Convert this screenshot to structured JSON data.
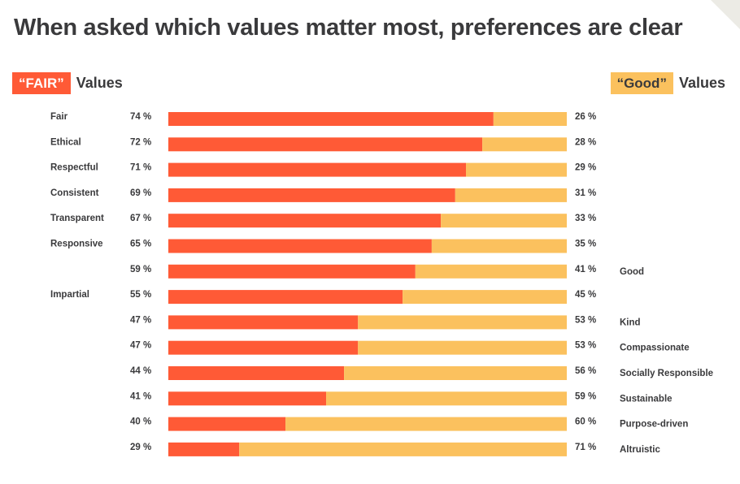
{
  "title": "When asked which values matter most, preferences are clear",
  "legend": {
    "left_chip": "“FAIR”",
    "left_text": "Values",
    "right_chip": "“Good”",
    "right_text": "Values"
  },
  "colors": {
    "fair": "#ff5a36",
    "good": "#fbc15e",
    "text": "#3a3a3c"
  },
  "chart_data": {
    "type": "bar",
    "orientation": "horizontal-stacked-100",
    "title": "When asked which values matter most, preferences are clear",
    "series": [
      {
        "name": "“FAIR” Values",
        "color": "#ff5a36",
        "values": [
          74,
          72,
          71,
          69,
          67,
          65,
          59,
          55,
          47,
          47,
          44,
          41,
          40,
          29
        ]
      },
      {
        "name": "“Good” Values",
        "color": "#fbc15e",
        "values": [
          26,
          28,
          29,
          31,
          33,
          35,
          41,
          45,
          53,
          53,
          56,
          59,
          60,
          71
        ]
      }
    ],
    "left_labels": [
      "Fair",
      "Ethical",
      "Respectful",
      "Consistent",
      "Transparent",
      "Responsive",
      "",
      "Impartial",
      "",
      "",
      "",
      "",
      "",
      ""
    ],
    "right_labels": [
      "",
      "",
      "",
      "",
      "",
      "",
      "Good",
      "",
      "Kind",
      "Compassionate",
      "Socially Responsible",
      "Sustainable",
      "Purpose-driven",
      "Altruistic"
    ],
    "fair_fill_fraction": [
      0.816,
      0.788,
      0.747,
      0.72,
      0.684,
      0.661,
      0.62,
      0.588,
      0.476,
      0.476,
      0.441,
      0.396,
      0.294,
      0.178
    ],
    "value_suffix": " %",
    "legend": "top-left and top-right",
    "grid": false
  }
}
